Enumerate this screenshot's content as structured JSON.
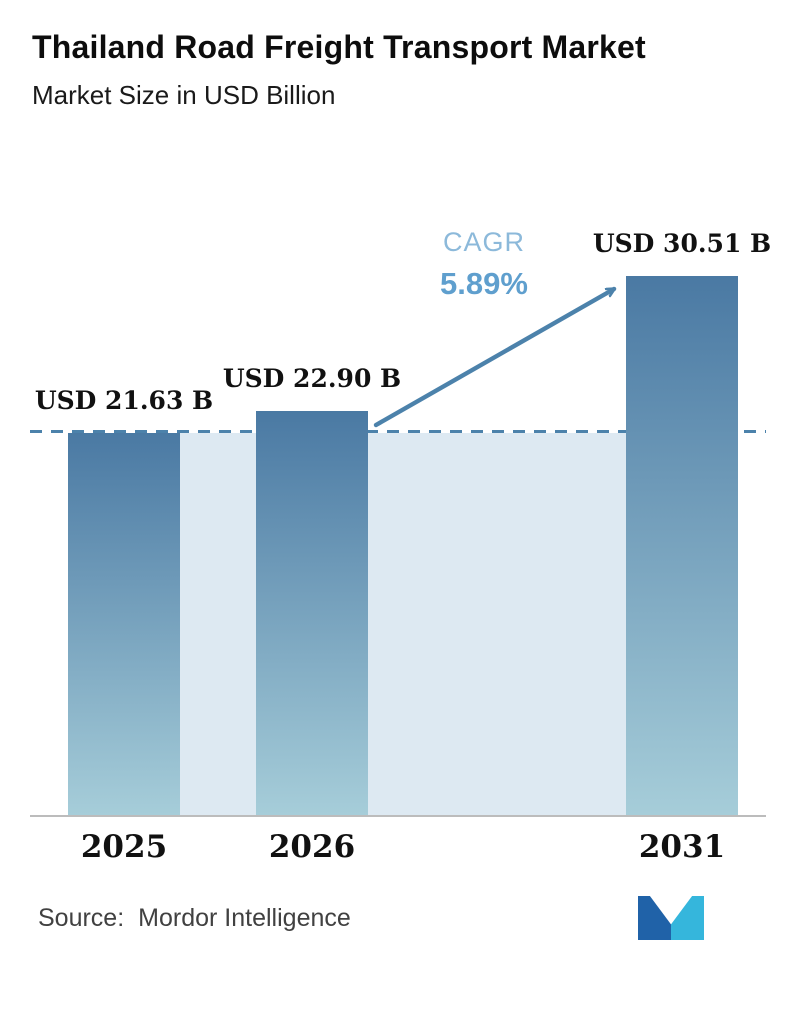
{
  "header": {
    "title": "Thailand Road Freight Transport Market",
    "subtitle": "Market Size in USD Billion"
  },
  "chart_data": {
    "type": "bar",
    "categories": [
      "2025",
      "2026",
      "2031"
    ],
    "values": [
      21.63,
      22.9,
      30.51
    ],
    "value_labels": [
      "USD 21.63 B",
      "USD 22.90 B",
      "USD 30.51 B"
    ],
    "title": "Thailand Road Freight Transport Market",
    "subtitle": "Market Size in USD Billion",
    "ylim": [
      0,
      30.51
    ],
    "grid": false,
    "legend": false,
    "reference_line_value": 21.63,
    "annotations": {
      "cagr_label": "CAGR",
      "cagr_value": "5.89%"
    },
    "colors": {
      "bar_top": "#4a79a3",
      "bar_bottom": "#a6cdd9",
      "band": "#dde9f2",
      "dashed_line": "#4c82ab",
      "arrow": "#4c82ab",
      "cagr_label": "#8cb9da",
      "cagr_value": "#5f9fce"
    }
  },
  "footer": {
    "source_label": "Source:",
    "source_value": "Mordor Intelligence",
    "logo": "mordor-intelligence-logo",
    "logo_colors": {
      "dark": "#2062a8",
      "light": "#35b6dc"
    }
  }
}
